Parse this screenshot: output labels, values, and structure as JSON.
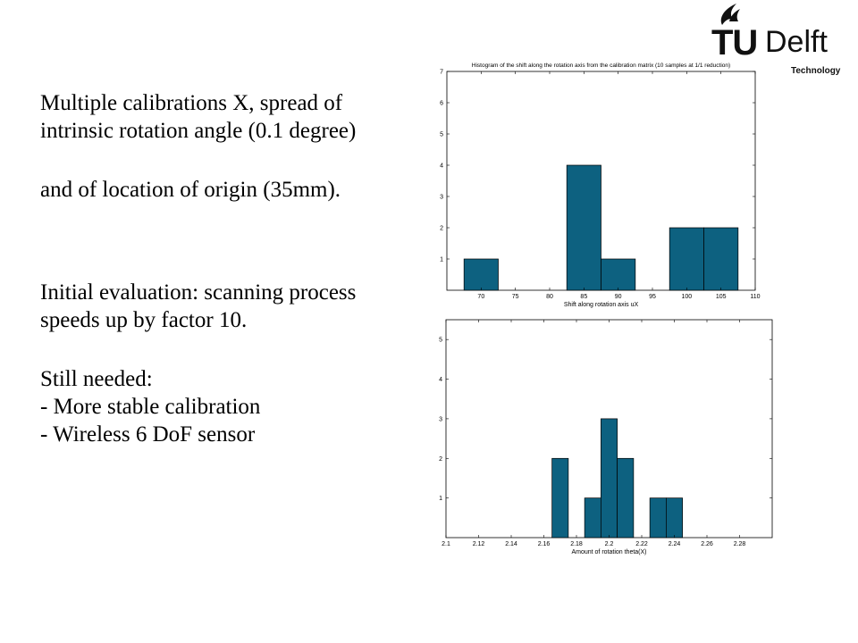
{
  "slide": {
    "lines_1": [
      "Multiple calibrations X, spread of",
      "intrinsic rotation angle (0.1 degree)"
    ],
    "lines_2": [
      "and of location of origin (35mm)."
    ],
    "lines_3": [
      "Initial evaluation: scanning process",
      "speeds up by factor 10."
    ],
    "lines_4": [
      "Still needed:",
      "- More stable calibration",
      "- Wireless 6 DoF sensor"
    ]
  },
  "logo": {
    "tu": "TU",
    "delft": "Delft",
    "tagline": "Technology"
  },
  "colors": {
    "bar": "#0d6180",
    "bar_edge": "#000000",
    "axis": "#000000"
  },
  "chart_data": [
    {
      "type": "bar",
      "title": "Histogram of the shift along the rotation axis from the calibration matrix (10 samples at 1/1 reduction)",
      "xlabel": "Shift along rotation axis uX",
      "ylabel": "",
      "xlim": [
        65,
        110
      ],
      "ylim": [
        0,
        7
      ],
      "xticks": [
        70,
        75,
        80,
        85,
        90,
        95,
        100,
        105,
        110
      ],
      "yticks": [
        1,
        2,
        3,
        4,
        5,
        6,
        7
      ],
      "bin_width": 5,
      "bins": [
        {
          "x": 70,
          "value": 1
        },
        {
          "x": 85,
          "value": 4
        },
        {
          "x": 90,
          "value": 1
        },
        {
          "x": 100,
          "value": 2
        },
        {
          "x": 105,
          "value": 2
        }
      ]
    },
    {
      "type": "bar",
      "title": "",
      "xlabel": "Amount of rotation theta(X)",
      "ylabel": "",
      "xlim": [
        2.1,
        2.3
      ],
      "ylim": [
        0,
        5.5
      ],
      "xticks": [
        2.1,
        2.12,
        2.14,
        2.16,
        2.18,
        2.2,
        2.22,
        2.24,
        2.26,
        2.28
      ],
      "yticks": [
        1,
        2,
        3,
        4,
        5
      ],
      "bin_width": 0.01,
      "bins": [
        {
          "x": 2.17,
          "value": 2
        },
        {
          "x": 2.19,
          "value": 1
        },
        {
          "x": 2.2,
          "value": 3
        },
        {
          "x": 2.21,
          "value": 2
        },
        {
          "x": 2.23,
          "value": 1
        },
        {
          "x": 2.24,
          "value": 1
        }
      ]
    }
  ]
}
